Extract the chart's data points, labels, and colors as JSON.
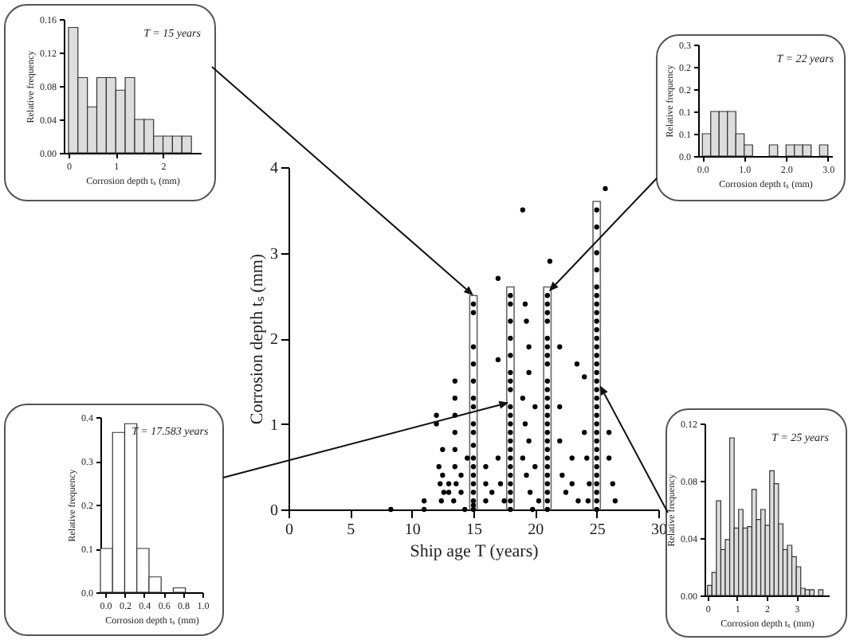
{
  "chart_data": [
    {
      "type": "scatter",
      "xlabel": "Ship age T (years)",
      "ylabel": "Corrosion depth tₛ (mm)",
      "marker": "circle",
      "grid": false,
      "xlim": [
        0,
        30
      ],
      "xticks": [
        0,
        5,
        10,
        15,
        20,
        25,
        30
      ],
      "ylim": [
        0,
        4
      ],
      "yticks": [
        0,
        1,
        2,
        3,
        4
      ],
      "series": [
        {
          "type": "bar",
          "color": "#666666",
          "x": [
            15,
            18,
            21,
            25
          ],
          "values": [
            2.5,
            2.6,
            2.6,
            3.6
          ]
        },
        {
          "type": "scatter",
          "color": "#000000",
          "x": [
            15,
            15,
            15,
            15,
            15,
            15,
            15,
            15,
            15,
            15,
            15,
            15,
            15,
            15,
            15,
            15,
            15,
            15,
            18,
            18,
            18,
            18,
            18,
            18,
            18,
            18,
            18,
            18,
            18,
            18,
            18,
            18,
            18,
            18,
            18,
            18,
            18,
            18,
            18,
            21,
            21,
            21,
            21,
            21,
            21,
            21,
            21,
            21,
            21,
            21,
            21,
            21,
            21,
            21,
            21,
            21,
            21,
            21,
            21,
            21,
            21,
            21,
            21,
            25,
            25,
            25,
            25,
            25,
            25,
            25,
            25,
            25,
            25,
            25,
            25,
            25,
            25,
            25,
            25,
            25,
            25,
            25,
            25,
            25,
            25,
            25,
            25,
            25,
            25,
            25,
            25,
            25,
            25,
            25,
            8.3,
            11,
            11,
            12,
            12,
            12.5,
            12.2,
            12.5,
            12.3,
            12.6,
            12.4,
            13,
            13,
            13.5,
            13.5,
            13.5,
            13.5,
            13.5,
            13.5,
            13.6,
            13.4,
            14,
            14,
            14.5,
            14.3,
            16,
            16,
            16,
            16.5,
            17,
            17,
            17,
            17.2,
            17.5,
            19,
            19.2,
            19.3,
            19.5,
            19.5,
            19,
            19.2,
            19.5,
            19,
            19.3,
            19.6,
            19.8,
            20,
            20,
            20.3,
            22,
            22,
            22,
            22.2,
            22.5,
            23,
            23,
            23.4,
            23.5,
            24,
            24,
            24.2,
            24.4,
            24.3,
            25.7,
            26,
            26,
            26.3,
            26.5,
            21.2
          ],
          "values": [
            2.4,
            2.3,
            1.9,
            1.7,
            1.5,
            1.3,
            1.2,
            1.0,
            0.9,
            0.75,
            0.6,
            0.5,
            0.4,
            0.3,
            0.2,
            0.1,
            0.05,
            0,
            2.5,
            2.4,
            2.2,
            2.0,
            1.8,
            1.6,
            1.5,
            1.4,
            1.2,
            1.1,
            1.0,
            0.9,
            0.8,
            0.7,
            0.6,
            0.5,
            0.4,
            0.3,
            0.2,
            0.1,
            0,
            2.5,
            2.4,
            2.3,
            2.2,
            2.0,
            1.9,
            1.8,
            1.7,
            1.5,
            1.4,
            1.3,
            1.2,
            1.1,
            1.0,
            0.9,
            0.8,
            0.7,
            0.6,
            0.5,
            0.4,
            0.3,
            0.2,
            0.1,
            0,
            3.5,
            3.3,
            3.0,
            2.8,
            2.6,
            2.5,
            2.4,
            2.3,
            2.2,
            2.1,
            2.0,
            1.9,
            1.8,
            1.7,
            1.6,
            1.5,
            1.4,
            1.3,
            1.2,
            1.1,
            1.0,
            0.9,
            0.8,
            0.7,
            0.6,
            0.5,
            0.4,
            0.3,
            0.2,
            0.1,
            0,
            0,
            0.1,
            0,
            1.1,
            1.0,
            0.7,
            0.5,
            0.4,
            0.3,
            0.2,
            0.1,
            0.3,
            0.2,
            1.5,
            1.3,
            1.1,
            0.9,
            0.7,
            0.5,
            0.3,
            0.1,
            0.4,
            0.2,
            0.6,
            0,
            0.5,
            0.3,
            0.1,
            0.2,
            2.7,
            1.75,
            0.6,
            0.3,
            0.1,
            3.5,
            2.4,
            2.2,
            1.9,
            1.6,
            1.3,
            1.0,
            0.8,
            0.6,
            0.4,
            0.2,
            0,
            1.2,
            0.5,
            0.1,
            1.9,
            1.2,
            0.8,
            0.4,
            0.2,
            0.6,
            0.3,
            1.7,
            0.1,
            1.55,
            0.9,
            0.6,
            0.3,
            0.1,
            3.75,
            0.9,
            0.6,
            0.3,
            0.1,
            2.9
          ]
        }
      ]
    },
    {
      "type": "histogram",
      "title": "T = 15 years",
      "xlabel": "Corrosion depth tₛ (mm)",
      "ylabel": "Relative frequency",
      "color": "#dddddd",
      "grid": false,
      "xlim": [
        -0.1,
        2.8
      ],
      "xticks": [
        0,
        1,
        2
      ],
      "ylim": [
        0,
        0.16
      ],
      "yticks": [
        {
          "value": 0,
          "label": "0.00"
        },
        0.04,
        0.08,
        0.12,
        0.16
      ],
      "bins": [
        0,
        0.2,
        0.4,
        0.6,
        0.8,
        1.0,
        1.2,
        1.4,
        1.6,
        1.8,
        2.0,
        2.2,
        2.4,
        2.6
      ],
      "values": [
        0.15,
        0.09,
        0.055,
        0.09,
        0.09,
        0.075,
        0.09,
        0.04,
        0.04,
        0.02,
        0.02,
        0.02,
        0.02
      ]
    },
    {
      "type": "histogram",
      "title": "T = 22 years",
      "xlabel": "Corrosion depth tₛ (mm)",
      "ylabel": "Relative frequency",
      "color": "#dddddd",
      "grid": false,
      "xlim": [
        -0.1,
        3.1
      ],
      "xticks": [
        {
          "value": 0,
          "label": "0.0"
        },
        {
          "value": 1,
          "label": "1.0"
        },
        {
          "value": 2,
          "label": "2.0"
        },
        {
          "value": 3,
          "label": "3.0"
        }
      ],
      "ylim": [
        0,
        0.3
      ],
      "yticks": [
        {
          "value": 0,
          "label": "0.0"
        },
        {
          "value": 0.06,
          "label": "0.1"
        },
        {
          "value": 0.12,
          "label": "0.1"
        },
        {
          "value": 0.18,
          "label": "0.2"
        },
        {
          "value": 0.24,
          "label": "0.2"
        },
        {
          "value": 0.3,
          "label": "0.3"
        }
      ],
      "bins": [
        0,
        0.2,
        0.4,
        0.6,
        0.8,
        1.0,
        1.2,
        1.4,
        1.6,
        1.8,
        2.0,
        2.2,
        2.4,
        2.6,
        2.8,
        3.0
      ],
      "values": [
        0.06,
        0.12,
        0.12,
        0.12,
        0.06,
        0.03,
        0,
        0,
        0.03,
        0,
        0.03,
        0.03,
        0.03,
        0,
        0.03
      ]
    },
    {
      "type": "histogram",
      "title": "T = 17.583 years",
      "xlabel": "Corrosion depth tₛ (mm)",
      "ylabel": "Relative frequency",
      "color": "#ffffff",
      "grid": false,
      "xlim": [
        -0.05,
        1.0
      ],
      "xticks": [
        {
          "value": 0,
          "label": "0.0"
        },
        0.2,
        0.4,
        0.6,
        0.8,
        {
          "value": 1,
          "label": "1.0"
        }
      ],
      "ylim": [
        0,
        0.4
      ],
      "yticks": [
        {
          "value": 0,
          "label": "0.0"
        },
        0.1,
        0.2,
        0.3,
        0.4
      ],
      "bins": [
        -0.05,
        0.075,
        0.2,
        0.325,
        0.45,
        0.575,
        0.7,
        0.825
      ],
      "values": [
        0.1,
        0.365,
        0.385,
        0.1,
        0.035,
        0,
        0.01
      ]
    },
    {
      "type": "histogram",
      "title": "T = 25 years",
      "xlabel": "Corrosion depth tₛ (mm)",
      "ylabel": "Relative frequency",
      "color": "#dddddd",
      "grid": false,
      "xlim": [
        -0.1,
        4.1
      ],
      "xticks": [
        0,
        1,
        2,
        3
      ],
      "ylim": [
        0,
        0.12
      ],
      "yticks": [
        {
          "value": 0,
          "label": "0.00"
        },
        0.04,
        0.08,
        0.12
      ],
      "bins": [
        0,
        0.15,
        0.3,
        0.45,
        0.6,
        0.75,
        0.9,
        1.05,
        1.2,
        1.35,
        1.5,
        1.65,
        1.8,
        1.95,
        2.1,
        2.25,
        2.4,
        2.55,
        2.7,
        2.85,
        3.0,
        3.15,
        3.3,
        3.45,
        3.6,
        3.75,
        3.9,
        4.05
      ],
      "values": [
        0.007,
        0.016,
        0.066,
        0.032,
        0.039,
        0.11,
        0.047,
        0.06,
        0.047,
        0.048,
        0.074,
        0.053,
        0.06,
        0.049,
        0.087,
        0.078,
        0.05,
        0.032,
        0.035,
        0.027,
        0.02,
        0.005,
        0.004,
        0.004,
        0,
        0.004,
        0
      ]
    }
  ]
}
